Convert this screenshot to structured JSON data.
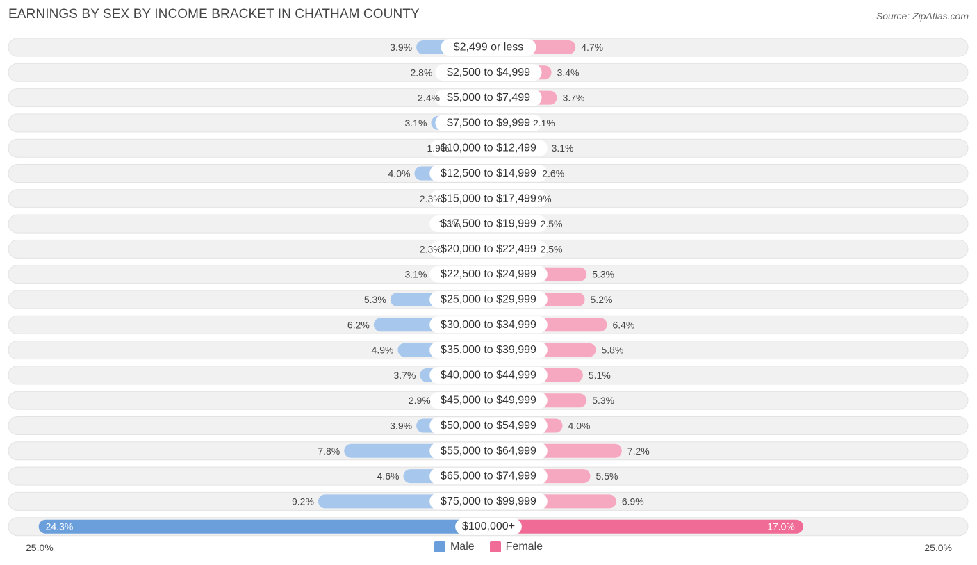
{
  "title": "EARNINGS BY SEX BY INCOME BRACKET IN CHATHAM COUNTY",
  "source": "Source: ZipAtlas.com",
  "colors": {
    "male": "#a8c7ec",
    "female": "#f6a8c0",
    "male_strong": "#6a9fdc",
    "female_strong": "#f06b96",
    "row_bg": "#f1f1f1"
  },
  "axis": {
    "left_label": "25.0%",
    "right_label": "25.0%"
  },
  "legend": {
    "male_label": "Male",
    "female_label": "Female"
  },
  "chart_data": {
    "type": "bar",
    "orientation": "horizontal-diverging",
    "title": "EARNINGS BY SEX BY INCOME BRACKET IN CHATHAM COUNTY",
    "xlim": [
      -25,
      25
    ],
    "categories": [
      "$2,499 or less",
      "$2,500 to $4,999",
      "$5,000 to $7,499",
      "$7,500 to $9,999",
      "$10,000 to $12,499",
      "$12,500 to $14,999",
      "$15,000 to $17,499",
      "$17,500 to $19,999",
      "$20,000 to $22,499",
      "$22,500 to $24,999",
      "$25,000 to $29,999",
      "$30,000 to $34,999",
      "$35,000 to $39,999",
      "$40,000 to $44,999",
      "$45,000 to $49,999",
      "$50,000 to $54,999",
      "$55,000 to $64,999",
      "$65,000 to $74,999",
      "$75,000 to $99,999",
      "$100,000+"
    ],
    "series": [
      {
        "name": "Male",
        "values": [
          3.9,
          2.8,
          2.4,
          3.1,
          1.9,
          4.0,
          2.3,
          1.3,
          2.3,
          3.1,
          5.3,
          6.2,
          4.9,
          3.7,
          2.9,
          3.9,
          7.8,
          4.6,
          9.2,
          24.3
        ],
        "labels": [
          "3.9%",
          "2.8%",
          "2.4%",
          "3.1%",
          "1.9%",
          "4.0%",
          "2.3%",
          "1.3%",
          "2.3%",
          "3.1%",
          "5.3%",
          "6.2%",
          "4.9%",
          "3.7%",
          "2.9%",
          "3.9%",
          "7.8%",
          "4.6%",
          "9.2%",
          "24.3%"
        ]
      },
      {
        "name": "Female",
        "values": [
          4.7,
          3.4,
          3.7,
          2.1,
          3.1,
          2.6,
          1.9,
          2.5,
          2.5,
          5.3,
          5.2,
          6.4,
          5.8,
          5.1,
          5.3,
          4.0,
          7.2,
          5.5,
          6.9,
          17.0
        ],
        "labels": [
          "4.7%",
          "3.4%",
          "3.7%",
          "2.1%",
          "3.1%",
          "2.6%",
          "1.9%",
          "2.5%",
          "2.5%",
          "5.3%",
          "5.2%",
          "6.4%",
          "5.8%",
          "5.1%",
          "5.3%",
          "4.0%",
          "7.2%",
          "5.5%",
          "6.9%",
          "17.0%"
        ]
      }
    ]
  }
}
